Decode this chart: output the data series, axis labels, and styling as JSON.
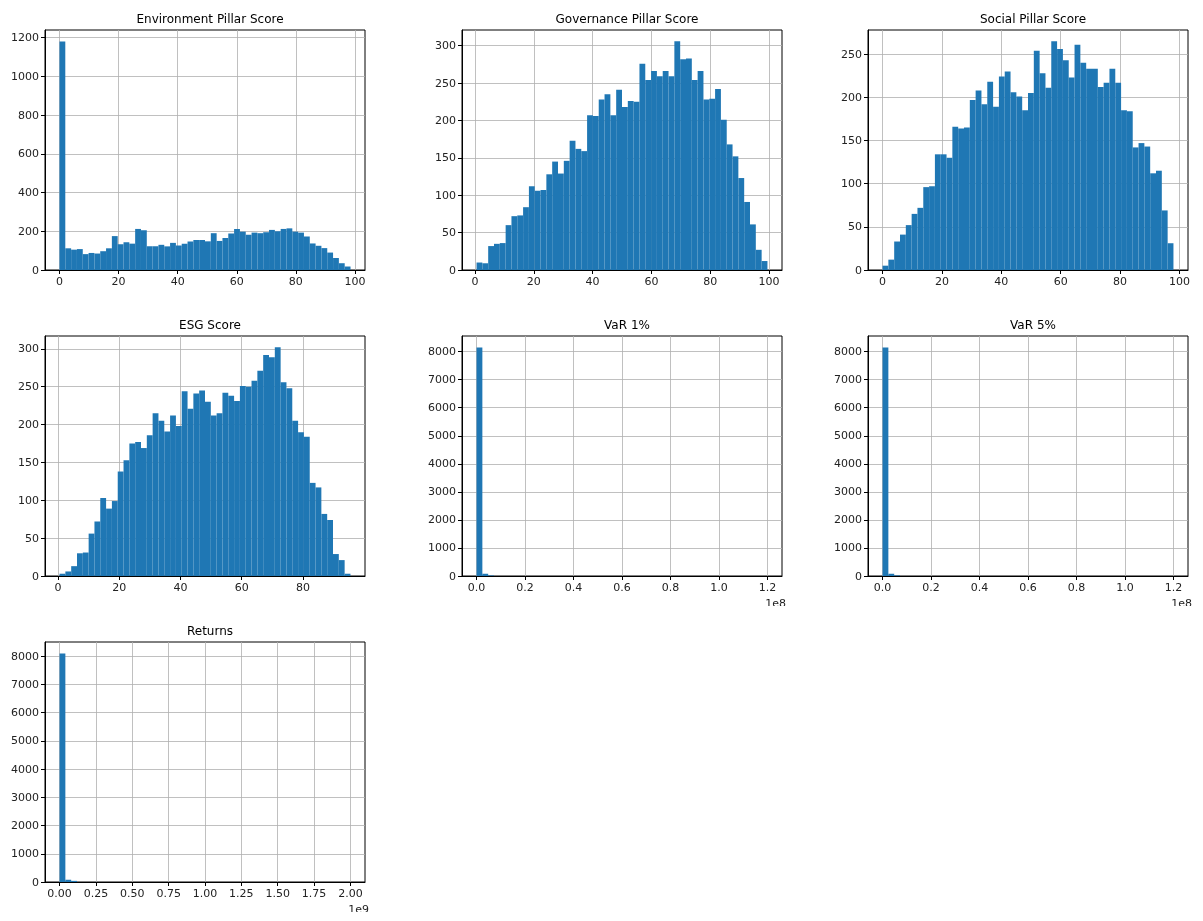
{
  "chart_data": [
    {
      "type": "histogram",
      "title": "Environment Pillar Score",
      "color": "#1f77b4",
      "grid": true,
      "bins": [
        0,
        1.97,
        3.94,
        5.91,
        7.88,
        9.85,
        11.82,
        13.79,
        15.76,
        17.73,
        19.7,
        21.67,
        23.64,
        25.61,
        27.58,
        29.55,
        31.52,
        33.49,
        35.46,
        37.43,
        39.4,
        41.37,
        43.34,
        45.31,
        47.28,
        49.25,
        51.22,
        53.19,
        55.16,
        57.13,
        59.1,
        61.07,
        63.04,
        65.01,
        66.98,
        68.95,
        70.92,
        72.89,
        74.86,
        76.83,
        78.8,
        80.77,
        82.74,
        84.71,
        86.68,
        88.65,
        90.62,
        92.59,
        94.56,
        96.53,
        98.5
      ],
      "values": [
        1180,
        112,
        105,
        108,
        82,
        88,
        85,
        97,
        112,
        175,
        133,
        143,
        136,
        212,
        205,
        122,
        123,
        130,
        122,
        140,
        127,
        135,
        147,
        155,
        155,
        148,
        190,
        150,
        165,
        188,
        212,
        198,
        182,
        193,
        190,
        195,
        207,
        200,
        212,
        215,
        198,
        193,
        173,
        137,
        125,
        113,
        90,
        62,
        35,
        18
      ],
      "xlim": [
        -4.9,
        103.4
      ],
      "xticks": [
        0,
        20,
        40,
        60,
        80,
        100
      ],
      "ylim": [
        0,
        1239
      ],
      "yticks": [
        0,
        200,
        400,
        600,
        800,
        1000,
        1200
      ]
    },
    {
      "type": "histogram",
      "title": "Governance Pillar Score",
      "color": "#1f77b4",
      "grid": true,
      "bins": [
        0.5,
        2.48,
        4.46,
        6.44,
        8.42,
        10.4,
        12.38,
        14.36,
        16.34,
        18.32,
        20.3,
        22.28,
        24.26,
        26.24,
        28.22,
        30.2,
        32.18,
        34.16,
        36.14,
        38.12,
        40.1,
        42.08,
        44.06,
        46.04,
        48.02,
        50,
        51.98,
        53.96,
        55.94,
        57.92,
        59.9,
        61.88,
        63.86,
        65.84,
        67.82,
        69.8,
        71.78,
        73.76,
        75.74,
        77.72,
        79.7,
        81.68,
        83.66,
        85.64,
        87.62,
        89.6,
        91.58,
        93.56,
        95.54,
        97.52,
        99.5
      ],
      "values": [
        10,
        9,
        32,
        35,
        36,
        60,
        72,
        73,
        84,
        112,
        106,
        107,
        128,
        145,
        129,
        146,
        173,
        162,
        159,
        207,
        206,
        228,
        235,
        207,
        241,
        218,
        226,
        225,
        276,
        254,
        266,
        259,
        266,
        259,
        306,
        282,
        283,
        254,
        266,
        228,
        229,
        242,
        201,
        168,
        152,
        123,
        91,
        61,
        27,
        12
      ],
      "xlim": [
        -4.45,
        104.45
      ],
      "xticks": [
        0,
        20,
        40,
        60,
        80,
        100
      ],
      "ylim": [
        0,
        321
      ],
      "yticks": [
        0,
        50,
        100,
        150,
        200,
        250,
        300
      ]
    },
    {
      "type": "histogram",
      "title": "Social Pillar Score",
      "color": "#1f77b4",
      "grid": true,
      "bins": [
        0,
        1.96,
        3.92,
        5.88,
        7.84,
        9.8,
        11.76,
        13.72,
        15.68,
        17.64,
        19.6,
        21.56,
        23.52,
        25.48,
        27.44,
        29.4,
        31.36,
        33.32,
        35.28,
        37.24,
        39.2,
        41.16,
        43.12,
        45.08,
        47.04,
        49,
        50.96,
        52.92,
        54.88,
        56.84,
        58.8,
        60.76,
        62.72,
        64.68,
        66.64,
        68.6,
        70.56,
        72.52,
        74.48,
        76.44,
        78.4,
        80.36,
        82.32,
        84.28,
        86.24,
        88.2,
        90.16,
        92.12,
        94.08,
        96.04,
        98
      ],
      "values": [
        5,
        12,
        33,
        41,
        52,
        65,
        72,
        96,
        97,
        134,
        134,
        130,
        166,
        164,
        165,
        197,
        208,
        192,
        218,
        189,
        224,
        230,
        206,
        201,
        185,
        205,
        254,
        228,
        211,
        265,
        256,
        243,
        223,
        261,
        240,
        233,
        233,
        212,
        217,
        233,
        217,
        185,
        184,
        142,
        147,
        143,
        112,
        115,
        69,
        31
      ],
      "xlim": [
        -4.9,
        102.9
      ],
      "xticks": [
        0,
        20,
        40,
        60,
        80,
        100
      ],
      "ylim": [
        0,
        278
      ],
      "yticks": [
        0,
        50,
        100,
        150,
        200,
        250
      ]
    },
    {
      "type": "histogram",
      "title": "ESG Score",
      "color": "#1f77b4",
      "grid": true,
      "bins": [
        0.5,
        2.4,
        4.3,
        6.2,
        8.1,
        10,
        11.9,
        13.8,
        15.7,
        17.6,
        19.5,
        21.4,
        23.3,
        25.2,
        27.1,
        29,
        30.9,
        32.8,
        34.7,
        36.6,
        38.5,
        40.4,
        42.3,
        44.2,
        46.1,
        48,
        49.9,
        51.8,
        53.7,
        55.6,
        57.5,
        59.4,
        61.3,
        63.2,
        65.1,
        67,
        68.9,
        70.8,
        72.7,
        74.6,
        76.5,
        78.4,
        80.3,
        82.2,
        84.1,
        86,
        87.9,
        89.8,
        91.7,
        93.6,
        95.5
      ],
      "values": [
        3,
        6,
        13,
        30,
        31,
        56,
        72,
        103,
        89,
        99,
        138,
        153,
        175,
        177,
        169,
        186,
        215,
        205,
        191,
        212,
        198,
        244,
        221,
        241,
        245,
        230,
        212,
        215,
        242,
        238,
        231,
        251,
        250,
        258,
        271,
        292,
        289,
        302,
        256,
        248,
        205,
        190,
        184,
        123,
        117,
        82,
        74,
        29,
        21,
        3
      ],
      "xlim": [
        -4.25,
        100.25
      ],
      "xticks": [
        0,
        20,
        40,
        60,
        80
      ],
      "ylim": [
        0,
        317
      ],
      "yticks": [
        0,
        50,
        100,
        150,
        200,
        250,
        300
      ]
    },
    {
      "type": "histogram",
      "title": "VaR 1%",
      "color": "#1f77b4",
      "grid": true,
      "annotations": [
        "1e8"
      ],
      "bins": [
        0,
        0.024,
        0.048,
        0.072,
        0.096,
        0.12,
        0.144,
        0.168,
        0.192,
        0.216,
        0.24,
        0.264,
        0.288,
        0.312,
        0.336,
        0.36,
        0.384,
        0.408,
        0.432,
        0.456,
        0.48,
        0.504,
        0.528,
        0.552,
        0.576,
        0.6,
        0.624,
        0.648,
        0.672,
        0.696,
        0.72,
        0.744,
        0.768,
        0.792,
        0.816,
        0.84,
        0.864,
        0.888,
        0.912,
        0.936,
        0.96,
        0.984,
        1.008,
        1.032,
        1.056,
        1.08,
        1.104,
        1.128,
        1.152,
        1.176,
        1.2
      ],
      "values": [
        8150,
        80,
        20,
        0,
        0,
        0,
        0,
        0,
        0,
        0,
        0,
        0,
        0,
        0,
        0,
        0,
        0,
        0,
        0,
        0,
        0,
        0,
        0,
        0,
        0,
        0,
        0,
        0,
        0,
        0,
        0,
        0,
        0,
        0,
        0,
        0,
        0,
        0,
        0,
        0,
        0,
        0,
        0,
        0,
        0,
        0,
        0,
        0,
        0,
        0
      ],
      "xlim": [
        -0.06,
        1.26
      ],
      "xticks": [
        {
          "value": 0,
          "label": "0.0"
        },
        0.2,
        0.4,
        0.6,
        0.8,
        {
          "value": 1,
          "label": "1.0"
        },
        1.2
      ],
      "ylim": [
        0,
        8557
      ],
      "yticks": [
        0,
        1000,
        2000,
        3000,
        4000,
        5000,
        6000,
        7000,
        8000
      ]
    },
    {
      "type": "histogram",
      "title": "VaR 5%",
      "color": "#1f77b4",
      "grid": true,
      "annotations": [
        "1e8"
      ],
      "bins": [
        0,
        0.024,
        0.048,
        0.072,
        0.096,
        0.12,
        0.144,
        0.168,
        0.192,
        0.216,
        0.24,
        0.264,
        0.288,
        0.312,
        0.336,
        0.36,
        0.384,
        0.408,
        0.432,
        0.456,
        0.48,
        0.504,
        0.528,
        0.552,
        0.576,
        0.6,
        0.624,
        0.648,
        0.672,
        0.696,
        0.72,
        0.744,
        0.768,
        0.792,
        0.816,
        0.84,
        0.864,
        0.888,
        0.912,
        0.936,
        0.96,
        0.984,
        1.008,
        1.032,
        1.056,
        1.08,
        1.104,
        1.128,
        1.152,
        1.176,
        1.2
      ],
      "values": [
        8150,
        80,
        20,
        0,
        0,
        0,
        0,
        0,
        0,
        0,
        0,
        0,
        0,
        0,
        0,
        0,
        0,
        0,
        0,
        0,
        0,
        0,
        0,
        0,
        0,
        0,
        0,
        0,
        0,
        0,
        0,
        0,
        0,
        0,
        0,
        0,
        0,
        0,
        0,
        0,
        0,
        0,
        0,
        0,
        0,
        0,
        0,
        0,
        0,
        0
      ],
      "xlim": [
        -0.06,
        1.26
      ],
      "xticks": [
        {
          "value": 0,
          "label": "0.0"
        },
        0.2,
        0.4,
        0.6,
        0.8,
        {
          "value": 1,
          "label": "1.0"
        },
        1.2
      ],
      "ylim": [
        0,
        8557
      ],
      "yticks": [
        0,
        1000,
        2000,
        3000,
        4000,
        5000,
        6000,
        7000,
        8000
      ]
    },
    {
      "type": "histogram",
      "title": "Returns",
      "color": "#1f77b4",
      "grid": true,
      "annotations": [
        "1e9"
      ],
      "bins": [
        0,
        0.04,
        0.08,
        0.12,
        0.16,
        0.2,
        0.24,
        0.28,
        0.32,
        0.36,
        0.4,
        0.44,
        0.48,
        0.52,
        0.56,
        0.6,
        0.64,
        0.68,
        0.72,
        0.76,
        0.8,
        0.84,
        0.88,
        0.92,
        0.96,
        1,
        1.04,
        1.08,
        1.12,
        1.16,
        1.2,
        1.24,
        1.28,
        1.32,
        1.36,
        1.4,
        1.44,
        1.48,
        1.52,
        1.56,
        1.6,
        1.64,
        1.68,
        1.72,
        1.76,
        1.8,
        1.84,
        1.88,
        1.92,
        1.96,
        2
      ],
      "values": [
        8100,
        80,
        40,
        0,
        0,
        0,
        0,
        0,
        0,
        0,
        0,
        0,
        0,
        0,
        0,
        0,
        0,
        0,
        0,
        0,
        0,
        0,
        0,
        0,
        0,
        0,
        0,
        0,
        0,
        0,
        0,
        0,
        0,
        0,
        0,
        0,
        0,
        0,
        0,
        0,
        0,
        0,
        0,
        0,
        0,
        0,
        0,
        0,
        0,
        0
      ],
      "xlim": [
        -0.1,
        2.1
      ],
      "xticks": [
        {
          "value": 0,
          "label": "0.00"
        },
        0.25,
        {
          "value": 0.5,
          "label": "0.50"
        },
        0.75,
        {
          "value": 1,
          "label": "1.00"
        },
        1.25,
        {
          "value": 1.5,
          "label": "1.50"
        },
        1.75,
        {
          "value": 2,
          "label": "2.00"
        }
      ],
      "ylim": [
        0,
        8505
      ],
      "yticks": [
        0,
        1000,
        2000,
        3000,
        4000,
        5000,
        6000,
        7000,
        8000
      ]
    }
  ]
}
